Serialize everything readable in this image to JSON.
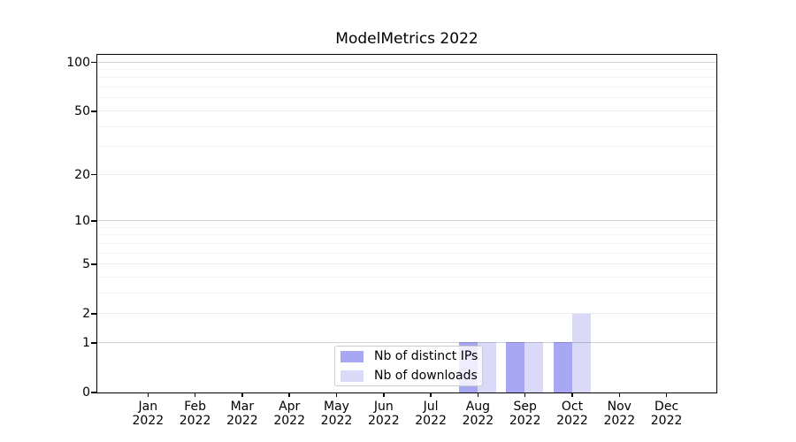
{
  "chart_data": {
    "type": "bar",
    "title": "ModelMetrics 2022",
    "x_months": [
      "Jan",
      "Feb",
      "Mar",
      "Apr",
      "May",
      "Jun",
      "Jul",
      "Aug",
      "Sep",
      "Oct",
      "Nov",
      "Dec"
    ],
    "x_year": "2022",
    "series": [
      {
        "name": "Nb of distinct IPs",
        "color": "#a7a7f3",
        "values": [
          0,
          0,
          0,
          0,
          0,
          0,
          0,
          1,
          1,
          1,
          0,
          0
        ]
      },
      {
        "name": "Nb of downloads",
        "color": "#dadaf8",
        "values": [
          0,
          0,
          0,
          0,
          0,
          0,
          0,
          1,
          1,
          2,
          0,
          0
        ]
      }
    ],
    "yticks": [
      0,
      1,
      2,
      5,
      10,
      20,
      50,
      100
    ],
    "scale": "log1p",
    "ylim": [
      0,
      111
    ],
    "grid": true,
    "legend_position": "lower center",
    "colors": {
      "distinct_ips": "#a7a7f3",
      "downloads": "#dadaf8",
      "axis": "#000000",
      "grid_major": "#d2d2d2",
      "grid_minor": "#f0f0f0"
    }
  }
}
